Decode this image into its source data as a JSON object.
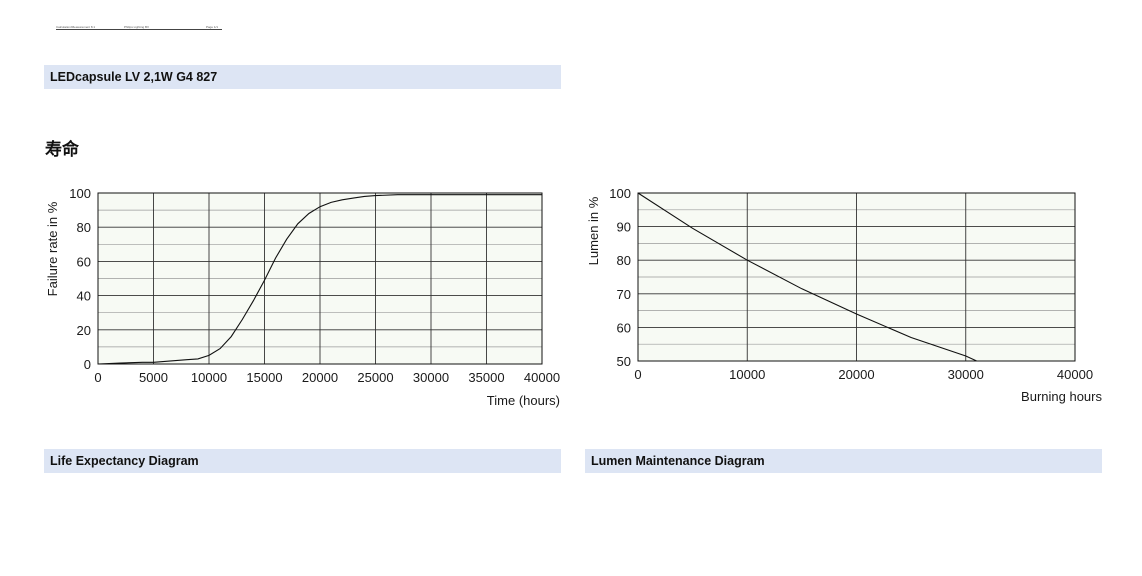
{
  "header": {
    "left_text": "Calculation/Measurement 8.1",
    "center_text": "Philips Lighting BV",
    "right_text": "Page 1/1"
  },
  "product_bar": {
    "label": "LEDcapsule LV 2,1W G4 827"
  },
  "section": {
    "title": "寿命"
  },
  "captions": {
    "left": "Life Expectancy Diagram",
    "right": "Lumen Maintenance Diagram"
  },
  "colors": {
    "caption_bar": "#dde5f4",
    "plot_background": "#f7faf4",
    "grid": "#333333",
    "curve": "#111111"
  },
  "chart_data": [
    {
      "type": "line",
      "title": "",
      "xlabel": "Time (hours)",
      "ylabel": "Failure rate in %",
      "xlim": [
        0,
        40000
      ],
      "ylim": [
        0,
        100
      ],
      "xticks": [
        0,
        5000,
        10000,
        15000,
        20000,
        25000,
        30000,
        35000,
        40000
      ],
      "yticks": [
        0,
        20,
        40,
        60,
        80,
        100
      ],
      "grid": true,
      "series": [
        {
          "x": [
            0,
            2000,
            4000,
            5000,
            6000,
            7000,
            8000,
            9000,
            10000,
            11000,
            12000,
            13000,
            14000,
            15000,
            16000,
            17000,
            18000,
            19000,
            20000,
            21000,
            22000,
            23000,
            24000,
            25000,
            27000,
            30000,
            35000,
            40000
          ],
          "y": [
            0,
            0.5,
            1,
            1,
            1.5,
            2,
            2.5,
            3,
            5,
            9,
            16,
            26,
            37,
            49,
            62,
            73,
            82,
            88,
            92,
            94.5,
            96,
            97,
            98,
            98.5,
            99,
            99,
            99,
            99
          ]
        }
      ]
    },
    {
      "type": "line",
      "title": "",
      "xlabel": "Burning hours",
      "ylabel": "Lumen in %",
      "xlim": [
        0,
        40000
      ],
      "ylim": [
        50,
        100
      ],
      "xticks": [
        0,
        10000,
        20000,
        30000,
        40000
      ],
      "yticks": [
        50,
        60,
        70,
        80,
        90,
        100
      ],
      "grid": true,
      "series": [
        {
          "x": [
            0,
            5000,
            10000,
            15000,
            20000,
            25000,
            30000,
            31000
          ],
          "y": [
            100,
            89.5,
            80,
            71.5,
            64,
            57,
            51.5,
            50
          ]
        }
      ]
    }
  ]
}
